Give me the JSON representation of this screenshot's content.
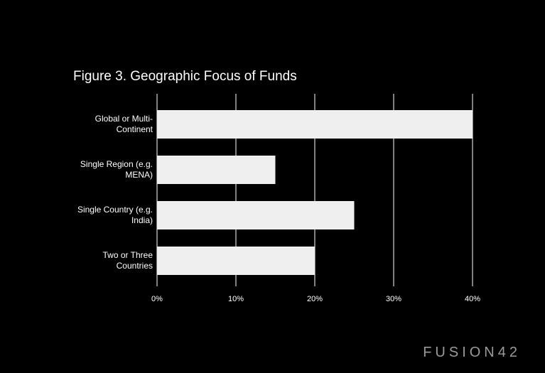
{
  "chart_data": {
    "type": "hbar",
    "title": "Figure 3. Geographic Focus of Funds",
    "categories": [
      "Global or Multi-Continent",
      "Single Region (e.g. MENA)",
      "Single Country (e.g. India)",
      "Two or Three Countries"
    ],
    "values": [
      40,
      15,
      25,
      20
    ],
    "color": "#efefef",
    "xlim": [
      0,
      40
    ],
    "xticks": [
      {
        "value": 0,
        "label": "0%"
      },
      {
        "value": 10,
        "label": "10%"
      },
      {
        "value": 20,
        "label": "20%"
      },
      {
        "value": 30,
        "label": "30%"
      },
      {
        "value": 40,
        "label": "40%"
      }
    ],
    "grid": true
  },
  "logo": "FUSION42"
}
